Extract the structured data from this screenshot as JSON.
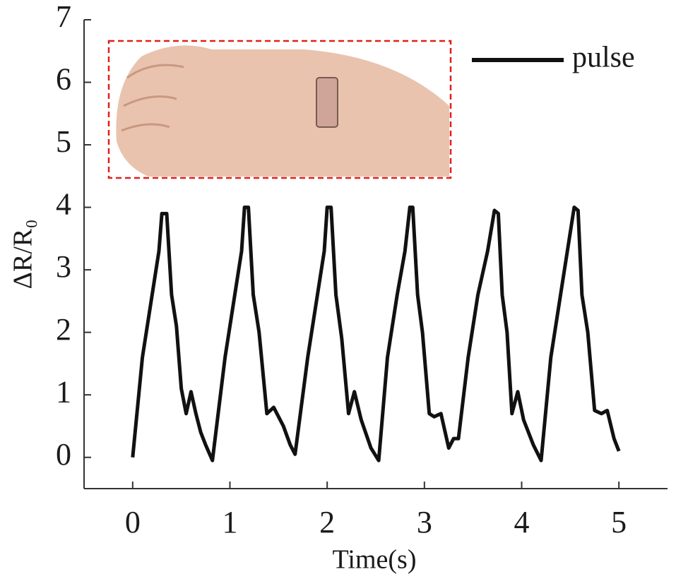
{
  "chart_data": {
    "type": "line",
    "xlabel": "Time(s)",
    "ylabel": "ΔR/R₀",
    "xlim": [
      -0.5,
      5.5
    ],
    "ylim": [
      -0.5,
      7
    ],
    "xticks": [
      0,
      1,
      2,
      3,
      4,
      5
    ],
    "yticks": [
      0,
      1,
      2,
      3,
      4,
      5,
      6,
      7
    ],
    "legend": "upper right",
    "grid": false,
    "series": [
      {
        "name": "pulse",
        "color": "#111111",
        "x": [
          0,
          0.1,
          0.2,
          0.27,
          0.3,
          0.35,
          0.4,
          0.45,
          0.5,
          0.55,
          0.6,
          0.65,
          0.7,
          0.75,
          0.82,
          0.95,
          1.05,
          1.12,
          1.15,
          1.19,
          1.24,
          1.3,
          1.38,
          1.45,
          1.55,
          1.62,
          1.67,
          1.8,
          1.9,
          1.97,
          2.0,
          2.04,
          2.09,
          2.15,
          2.22,
          2.28,
          2.35,
          2.45,
          2.53,
          2.62,
          2.72,
          2.8,
          2.85,
          2.88,
          2.93,
          2.98,
          3.05,
          3.1,
          3.17,
          3.25,
          3.3,
          3.35,
          3.45,
          3.55,
          3.65,
          3.72,
          3.76,
          3.8,
          3.85,
          3.9,
          3.96,
          4.02,
          4.12,
          4.2,
          4.3,
          4.4,
          4.47,
          4.54,
          4.58,
          4.62,
          4.68,
          4.75,
          4.82,
          4.88,
          4.95,
          5.0
        ],
        "values": [
          0,
          1.6,
          2.6,
          3.3,
          3.9,
          3.9,
          2.6,
          2.1,
          1.1,
          0.7,
          1.05,
          0.7,
          0.4,
          0.2,
          -0.05,
          1.6,
          2.6,
          3.3,
          4.0,
          4.0,
          2.6,
          2.0,
          0.7,
          0.8,
          0.5,
          0.2,
          0.05,
          1.6,
          2.6,
          3.3,
          4.0,
          4.0,
          2.6,
          1.9,
          0.7,
          1.05,
          0.6,
          0.15,
          -0.05,
          1.6,
          2.6,
          3.3,
          4.0,
          4.0,
          2.6,
          2.0,
          0.7,
          0.65,
          0.7,
          0.15,
          0.3,
          0.3,
          1.6,
          2.6,
          3.3,
          3.95,
          3.9,
          2.6,
          2.0,
          0.7,
          1.05,
          0.6,
          0.2,
          -0.05,
          1.6,
          2.6,
          3.3,
          4.0,
          3.95,
          2.6,
          2.0,
          0.75,
          0.7,
          0.75,
          0.3,
          0.1
        ]
      }
    ]
  }
}
